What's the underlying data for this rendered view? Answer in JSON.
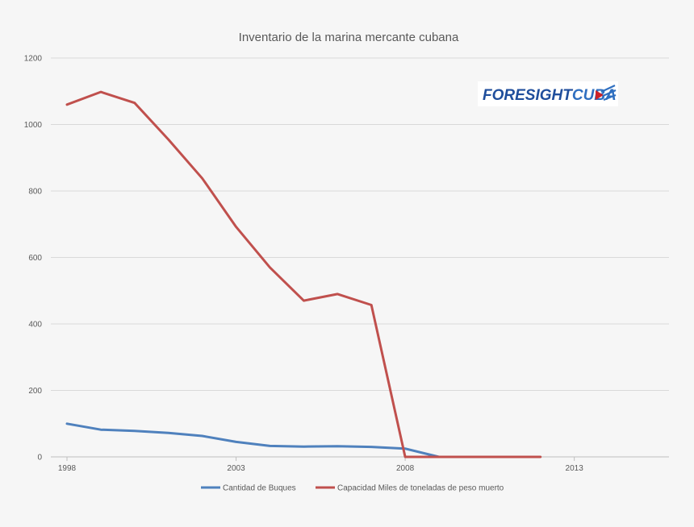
{
  "chart_data": {
    "type": "line",
    "title": "Inventario de la marina mercante cubana",
    "xlabel": "",
    "ylabel": "",
    "xlim": [
      1998,
      2015.8
    ],
    "ylim": [
      0,
      1200
    ],
    "yticks": [
      0,
      200,
      400,
      600,
      800,
      1000,
      1200
    ],
    "xticks": [
      1998,
      2003,
      2008,
      2013
    ],
    "grid": true,
    "legend": "bottom",
    "series": [
      {
        "name": "Cantidad de Buques",
        "color": "#4f81bd",
        "x": [
          1998,
          1999,
          2000,
          2001,
          2002,
          2003,
          2004,
          2005,
          2006,
          2007,
          2008,
          2009
        ],
        "y": [
          100,
          82,
          78,
          72,
          63,
          45,
          33,
          31,
          32,
          30,
          25,
          0
        ]
      },
      {
        "name": "Capacidad Miles de toneladas de peso muerto",
        "color": "#c0504d",
        "x": [
          1998,
          1999,
          2000,
          2001,
          2002,
          2003,
          2004,
          2005,
          2006,
          2007,
          2008,
          2009,
          2010,
          2011,
          2012
        ],
        "y": [
          1060,
          1098,
          1065,
          955,
          838,
          692,
          570,
          470,
          490,
          457,
          0,
          0,
          0,
          0,
          0
        ]
      }
    ]
  },
  "logo": {
    "text_main": "FORESIGHT",
    "text_accent": "CUBA",
    "color_main": "#1f4e9c",
    "color_accent": "#2f6fc0"
  }
}
